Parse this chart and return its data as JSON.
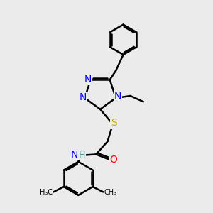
{
  "bg_color": "#ebebeb",
  "atom_colors": {
    "N": "#0000FF",
    "O": "#FF0000",
    "S": "#CCAA00",
    "C": "#000000",
    "H": "#4a9090"
  },
  "bond_color": "#000000",
  "bond_width": 1.8,
  "font_size_atom": 10,
  "font_size_small": 8.5
}
